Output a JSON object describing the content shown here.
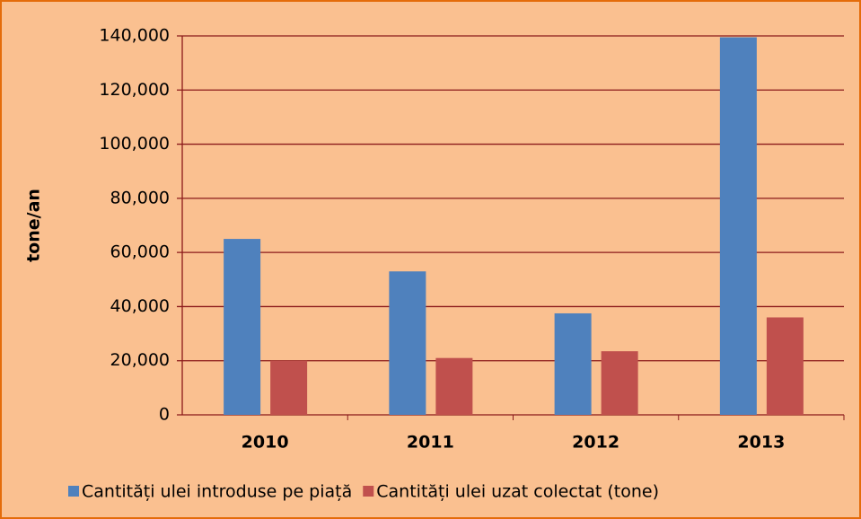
{
  "chart_data": {
    "type": "bar",
    "y_label": "tone/an",
    "categories": [
      "2010",
      "2011",
      "2012",
      "2013"
    ],
    "series": [
      {
        "name": "Cantități ulei introduse pe piață",
        "color": "#4f81bd",
        "values": [
          65000,
          53000,
          37500,
          139500
        ]
      },
      {
        "name": "Cantități ulei uzat colectat (tone)",
        "color": "#c0504d",
        "values": [
          20000,
          21000,
          23500,
          36000
        ]
      }
    ],
    "ylim": [
      0,
      140000
    ],
    "yticks": [
      0,
      {
        "value": 20000,
        "label": "20,000"
      },
      {
        "value": 40000,
        "label": "40,000"
      },
      {
        "value": 60000,
        "label": "60,000"
      },
      {
        "value": 80000,
        "label": "80,000"
      },
      {
        "value": 100000,
        "label": "100,000"
      },
      {
        "value": 120000,
        "label": "120,000"
      },
      {
        "value": 140000,
        "label": "140,000"
      }
    ],
    "grid": true,
    "legend": "bottom",
    "background": "#fac090",
    "grid_color": "#8b1a1a"
  }
}
